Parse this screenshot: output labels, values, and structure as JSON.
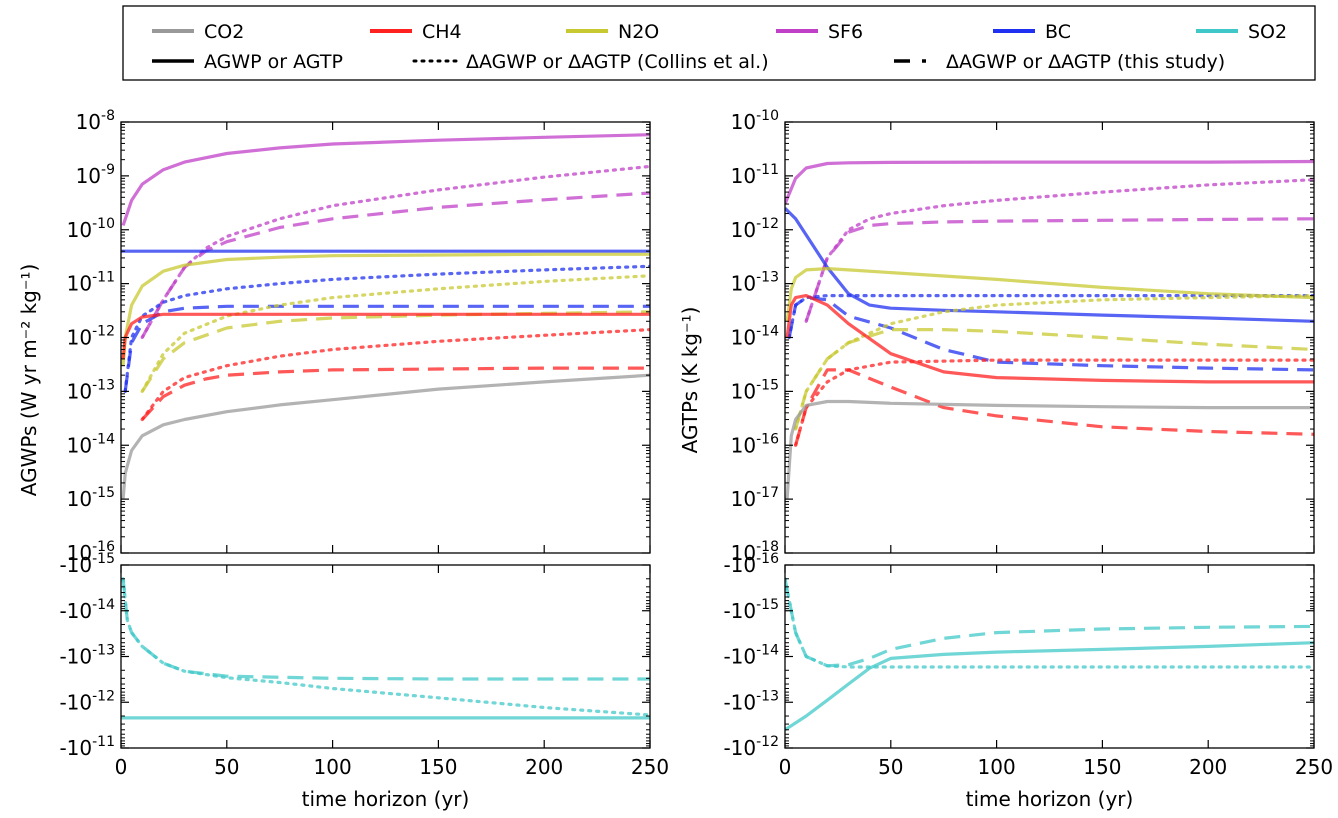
{
  "legend": {
    "gases": [
      {
        "name": "CO2",
        "color": "#999999"
      },
      {
        "name": "CH4",
        "color": "#ff2020"
      },
      {
        "name": "N2O",
        "color": "#c8c830"
      },
      {
        "name": "SF6",
        "color": "#c040c8"
      },
      {
        "name": "BC",
        "color": "#2030f0"
      },
      {
        "name": "SO2",
        "color": "#40c8c8"
      }
    ],
    "styles": [
      {
        "label": "AGWP or AGTP",
        "dash": "solid"
      },
      {
        "label": "ΔAGWP or ΔAGTP (Collins et al.)",
        "dash": "dotted"
      },
      {
        "label": "ΔAGWP or ΔAGTP (this study)",
        "dash": "dashed"
      }
    ]
  },
  "chart_data": [
    {
      "type": "line",
      "panel": "left-top",
      "ylabel": "AGWPs (W yr m⁻² kg⁻¹)",
      "yscale": "log",
      "xlim": [
        0,
        250
      ],
      "ylim_exp": [
        -16,
        -8
      ],
      "y_tick_labels": [
        "10^-8",
        "10^-9",
        "10^-10",
        "10^-11",
        "10^-12",
        "10^-13",
        "10^-14",
        "10^-15",
        "10^-16"
      ],
      "series": [
        {
          "gas": "SF6",
          "style": "solid",
          "x": [
            1,
            5,
            10,
            20,
            30,
            50,
            75,
            100,
            150,
            200,
            250
          ],
          "y": [
            1.2e-10,
            3.5e-10,
            7e-10,
            1.3e-09,
            1.8e-09,
            2.6e-09,
            3.3e-09,
            3.9e-09,
            4.6e-09,
            5.2e-09,
            5.8e-09
          ]
        },
        {
          "gas": "SF6",
          "style": "dotted",
          "x": [
            10,
            20,
            30,
            40,
            50,
            75,
            100,
            150,
            200,
            250
          ],
          "y": [
            1e-12,
            5e-12,
            2e-11,
            4.5e-11,
            7.5e-11,
            1.6e-10,
            2.8e-10,
            5.5e-10,
            9.5e-10,
            1.5e-09
          ]
        },
        {
          "gas": "SF6",
          "style": "dashed",
          "x": [
            10,
            20,
            30,
            40,
            50,
            75,
            100,
            150,
            200,
            250
          ],
          "y": [
            1e-12,
            5e-12,
            2e-11,
            4e-11,
            6e-11,
            1.1e-10,
            1.6e-10,
            2.6e-10,
            3.6e-10,
            4.8e-10
          ]
        },
        {
          "gas": "BC",
          "style": "solid",
          "x": [
            0,
            250
          ],
          "y": [
            4e-11,
            4e-11
          ]
        },
        {
          "gas": "BC",
          "style": "dotted",
          "x": [
            2,
            5,
            10,
            20,
            30,
            50,
            75,
            100,
            150,
            200,
            250
          ],
          "y": [
            1e-13,
            1e-12,
            2.5e-12,
            4.5e-12,
            6e-12,
            8e-12,
            1e-11,
            1.2e-11,
            1.5e-11,
            1.8e-11,
            2.1e-11
          ]
        },
        {
          "gas": "BC",
          "style": "dashed",
          "x": [
            2,
            5,
            10,
            20,
            30,
            50,
            75,
            100,
            150,
            200,
            250
          ],
          "y": [
            1e-13,
            8e-13,
            1.8e-12,
            3e-12,
            3.5e-12,
            3.8e-12,
            3.8e-12,
            3.8e-12,
            3.8e-12,
            3.8e-12,
            3.8e-12
          ]
        },
        {
          "gas": "N2O",
          "style": "solid",
          "x": [
            1,
            2,
            5,
            10,
            20,
            30,
            50,
            75,
            100,
            150,
            200,
            250
          ],
          "y": [
            3e-13,
            1e-12,
            4e-12,
            9e-12,
            1.7e-11,
            2.2e-11,
            2.8e-11,
            3.1e-11,
            3.3e-11,
            3.4e-11,
            3.5e-11,
            3.5e-11
          ]
        },
        {
          "gas": "N2O",
          "style": "dotted",
          "x": [
            10,
            20,
            30,
            50,
            75,
            100,
            150,
            200,
            250
          ],
          "y": [
            1e-13,
            5e-13,
            1.2e-12,
            2.5e-12,
            4e-12,
            5.5e-12,
            8e-12,
            1.1e-11,
            1.4e-11
          ]
        },
        {
          "gas": "N2O",
          "style": "dashed",
          "x": [
            10,
            20,
            30,
            50,
            75,
            100,
            150,
            200,
            250
          ],
          "y": [
            1e-13,
            4e-13,
            8e-13,
            1.5e-12,
            2e-12,
            2.3e-12,
            2.6e-12,
            2.8e-12,
            3e-12
          ]
        },
        {
          "gas": "CH4",
          "style": "solid",
          "x": [
            1,
            2,
            5,
            10,
            20,
            30,
            50,
            100,
            150,
            200,
            250
          ],
          "y": [
            4e-13,
            1e-12,
            1.8e-12,
            2.4e-12,
            2.7e-12,
            2.7e-12,
            2.7e-12,
            2.7e-12,
            2.7e-12,
            2.7e-12,
            2.7e-12
          ]
        },
        {
          "gas": "CH4",
          "style": "dotted",
          "x": [
            10,
            20,
            30,
            50,
            75,
            100,
            150,
            200,
            250
          ],
          "y": [
            3e-14,
            1e-13,
            1.8e-13,
            3e-13,
            4.5e-13,
            6e-13,
            8.5e-13,
            1.1e-12,
            1.4e-12
          ]
        },
        {
          "gas": "CH4",
          "style": "dashed",
          "x": [
            10,
            20,
            30,
            40,
            50,
            75,
            100,
            150,
            200,
            250
          ],
          "y": [
            3e-14,
            8e-14,
            1.3e-13,
            1.7e-13,
            2e-13,
            2.3e-13,
            2.5e-13,
            2.6e-13,
            2.7e-13,
            2.7e-13
          ]
        },
        {
          "gas": "CO2",
          "style": "solid",
          "x": [
            1,
            2,
            5,
            10,
            20,
            30,
            50,
            75,
            100,
            150,
            200,
            250
          ],
          "y": [
            1e-15,
            3e-15,
            8e-15,
            1.5e-14,
            2.4e-14,
            3e-14,
            4.2e-14,
            5.6e-14,
            7e-14,
            1.1e-13,
            1.5e-13,
            2e-13
          ]
        }
      ]
    },
    {
      "type": "line",
      "panel": "left-bottom",
      "xlabel": "time horizon (yr)",
      "yscale": "log",
      "xlim": [
        0,
        250
      ],
      "x_tick_labels": [
        "0",
        "50",
        "100",
        "150",
        "200",
        "250"
      ],
      "ylim_exp": [
        -15,
        -11
      ],
      "y_tick_labels": [
        "-10^-15",
        "-10^-14",
        "-10^-13",
        "-10^-12",
        "-10^-11"
      ],
      "series": [
        {
          "gas": "SO2",
          "style": "solid",
          "x": [
            0,
            250
          ],
          "y": [
            -2.2e-12,
            -2.2e-12
          ]
        },
        {
          "gas": "SO2",
          "style": "dotted",
          "x": [
            1,
            3,
            5,
            10,
            20,
            30,
            50,
            75,
            100,
            150,
            200,
            250
          ],
          "y": [
            -2e-15,
            -1.6e-14,
            -3e-14,
            -6e-14,
            -1.4e-13,
            -2.1e-13,
            -2.9e-13,
            -3.7e-13,
            -5e-13,
            -8e-13,
            -1.3e-12,
            -1.9e-12
          ]
        },
        {
          "gas": "SO2",
          "style": "dashed",
          "x": [
            1,
            3,
            5,
            10,
            20,
            30,
            50,
            100,
            150,
            200,
            250
          ],
          "y": [
            -2e-15,
            -1.6e-14,
            -3e-14,
            -6e-14,
            -1.4e-13,
            -2.1e-13,
            -2.7e-13,
            -3e-13,
            -3.1e-13,
            -3.1e-13,
            -3.1e-13
          ]
        }
      ]
    },
    {
      "type": "line",
      "panel": "right-top",
      "ylabel": "AGTPs (K kg⁻¹)",
      "yscale": "log",
      "xlim": [
        0,
        250
      ],
      "ylim_exp": [
        -18,
        -10
      ],
      "y_tick_labels": [
        "10^-10",
        "10^-11",
        "10^-12",
        "10^-13",
        "10^-14",
        "10^-15",
        "10^-16",
        "10^-17",
        "10^-18"
      ],
      "series": [
        {
          "gas": "SF6",
          "style": "solid",
          "x": [
            0,
            5,
            10,
            20,
            30,
            50,
            100,
            150,
            200,
            250
          ],
          "y": [
            3e-12,
            9e-12,
            1.4e-11,
            1.7e-11,
            1.75e-11,
            1.78e-11,
            1.8e-11,
            1.8e-11,
            1.8e-11,
            1.85e-11
          ]
        },
        {
          "gas": "SF6",
          "style": "dotted",
          "x": [
            10,
            20,
            30,
            40,
            50,
            75,
            100,
            150,
            200,
            250
          ],
          "y": [
            2e-14,
            3e-13,
            1e-12,
            1.6e-12,
            2e-12,
            2.8e-12,
            3.5e-12,
            5e-12,
            6.8e-12,
            8.5e-12
          ]
        },
        {
          "gas": "SF6",
          "style": "dashed",
          "x": [
            10,
            20,
            30,
            40,
            50,
            75,
            100,
            150,
            200,
            250
          ],
          "y": [
            2e-14,
            3e-13,
            9e-13,
            1.2e-12,
            1.3e-12,
            1.4e-12,
            1.45e-12,
            1.5e-12,
            1.55e-12,
            1.6e-12
          ]
        },
        {
          "gas": "BC",
          "style": "solid",
          "x": [
            0,
            5,
            10,
            20,
            30,
            40,
            50,
            75,
            100,
            150,
            200,
            250
          ],
          "y": [
            2.5e-12,
            1.6e-12,
            8e-13,
            2e-13,
            6.5e-14,
            4e-14,
            3.5e-14,
            3.2e-14,
            3e-14,
            2.6e-14,
            2.3e-14,
            2e-14
          ]
        },
        {
          "gas": "BC",
          "style": "dotted",
          "x": [
            2,
            5,
            10,
            20,
            30,
            50,
            100,
            150,
            200,
            250
          ],
          "y": [
            1e-14,
            4e-14,
            5.5e-14,
            6e-14,
            6e-14,
            6e-14,
            6e-14,
            6e-14,
            6e-14,
            6e-14
          ]
        },
        {
          "gas": "BC",
          "style": "dashed",
          "x": [
            2,
            5,
            10,
            20,
            30,
            50,
            75,
            100,
            150,
            200,
            250
          ],
          "y": [
            1e-14,
            4e-14,
            5.5e-14,
            5e-14,
            2.5e-14,
            1.5e-14,
            6e-15,
            3.5e-15,
            3e-15,
            2.7e-15,
            2.5e-15
          ]
        },
        {
          "gas": "N2O",
          "style": "solid",
          "x": [
            1,
            3,
            5,
            10,
            20,
            30,
            50,
            100,
            150,
            200,
            250
          ],
          "y": [
            2e-14,
            8e-14,
            1.3e-13,
            1.8e-13,
            1.9e-13,
            1.8e-13,
            1.6e-13,
            1.2e-13,
            8.5e-14,
            6.5e-14,
            5.5e-14
          ]
        },
        {
          "gas": "N2O",
          "style": "dotted",
          "x": [
            5,
            10,
            20,
            30,
            50,
            75,
            100,
            150,
            200,
            250
          ],
          "y": [
            2e-16,
            1e-15,
            4e-15,
            8e-15,
            1.8e-14,
            3e-14,
            4e-14,
            5e-14,
            5.5e-14,
            6e-14
          ]
        },
        {
          "gas": "N2O",
          "style": "dashed",
          "x": [
            5,
            10,
            20,
            30,
            50,
            75,
            100,
            150,
            200,
            250
          ],
          "y": [
            2e-16,
            1e-15,
            4e-15,
            8e-15,
            1.4e-14,
            1.4e-14,
            1.3e-14,
            1e-14,
            7.5e-15,
            6e-15
          ]
        },
        {
          "gas": "CH4",
          "style": "solid",
          "x": [
            1,
            3,
            5,
            10,
            20,
            30,
            50,
            75,
            100,
            150,
            200,
            250
          ],
          "y": [
            1e-14,
            4e-14,
            5.5e-14,
            6e-14,
            4e-14,
            1.8e-14,
            5e-15,
            2.3e-15,
            1.8e-15,
            1.6e-15,
            1.5e-15,
            1.5e-15
          ]
        },
        {
          "gas": "CH4",
          "style": "dotted",
          "x": [
            5,
            10,
            20,
            30,
            50,
            100,
            150,
            200,
            250
          ],
          "y": [
            1e-16,
            5e-16,
            1.5e-15,
            2.5e-15,
            3.5e-15,
            3.8e-15,
            3.8e-15,
            3.8e-15,
            3.8e-15
          ]
        },
        {
          "gas": "CH4",
          "style": "dashed",
          "x": [
            5,
            10,
            20,
            30,
            50,
            75,
            100,
            150,
            200,
            250
          ],
          "y": [
            1e-16,
            5e-16,
            2.5e-15,
            2.5e-15,
            1.2e-15,
            5e-16,
            3.5e-16,
            2.2e-16,
            1.8e-16,
            1.6e-16
          ]
        },
        {
          "gas": "CO2",
          "style": "solid",
          "x": [
            1,
            3,
            5,
            10,
            20,
            30,
            50,
            100,
            150,
            200,
            250
          ],
          "y": [
            1e-17,
            1.5e-16,
            3e-16,
            5.5e-16,
            6.5e-16,
            6.5e-16,
            6e-16,
            5.5e-16,
            5.2e-16,
            5e-16,
            5e-16
          ]
        }
      ]
    },
    {
      "type": "line",
      "panel": "right-bottom",
      "xlabel": "time horizon (yr)",
      "yscale": "log",
      "xlim": [
        0,
        250
      ],
      "x_tick_labels": [
        "0",
        "50",
        "100",
        "150",
        "200",
        "250"
      ],
      "ylim_exp": [
        -16,
        -12
      ],
      "y_tick_labels": [
        "-10^-16",
        "-10^-15",
        "-10^-14",
        "-10^-13",
        "-10^-12"
      ],
      "series": [
        {
          "gas": "SO2",
          "style": "solid",
          "x": [
            0,
            10,
            20,
            30,
            40,
            50,
            75,
            100,
            150,
            200,
            250
          ],
          "y": [
            -4e-13,
            -2e-13,
            -9e-14,
            -4e-14,
            -1.8e-14,
            -1.1e-14,
            -9e-15,
            -8e-15,
            -7e-15,
            -6e-15,
            -5e-15
          ]
        },
        {
          "gas": "SO2",
          "style": "dotted",
          "x": [
            0,
            5,
            10,
            20,
            30,
            50,
            100,
            150,
            200,
            250
          ],
          "y": [
            -2e-16,
            -3e-15,
            -1e-14,
            -1.6e-14,
            -1.7e-14,
            -1.7e-14,
            -1.7e-14,
            -1.7e-14,
            -1.7e-14,
            -1.7e-14
          ]
        },
        {
          "gas": "SO2",
          "style": "dashed",
          "x": [
            0,
            5,
            10,
            20,
            30,
            40,
            50,
            75,
            100,
            150,
            200,
            250
          ],
          "y": [
            -2e-16,
            -3e-15,
            -1e-14,
            -1.6e-14,
            -1.5e-14,
            -1.1e-14,
            -7e-15,
            -4e-15,
            -3e-15,
            -2.5e-15,
            -2.3e-15,
            -2.2e-15
          ]
        }
      ]
    }
  ]
}
